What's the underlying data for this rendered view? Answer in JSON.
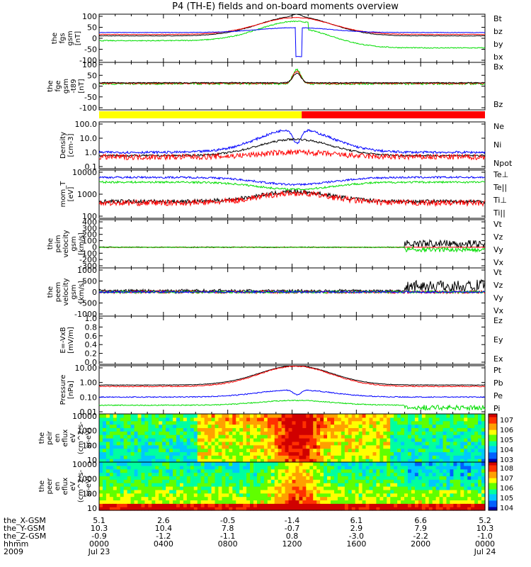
{
  "title": "P4 (TH-E) fields and on-board moments overview",
  "year": "2009",
  "colors": {
    "black": "#000000",
    "red": "#ff0000",
    "green": "#00dd00",
    "blue": "#0000ff",
    "yellow": "#ffff00"
  },
  "chart_data": [
    {
      "type": "line",
      "name": "fgs",
      "ylabel": [
        "the",
        "fgs",
        "gsm",
        "[nT]"
      ],
      "ylim": [
        -100,
        100
      ],
      "yticks": [
        "100",
        "50",
        "0",
        "-50",
        "-100"
      ],
      "legend": [
        {
          "label": "Bt",
          "color": "#000000"
        },
        {
          "label": "bz",
          "color": "#ff0000"
        },
        {
          "label": "by",
          "color": "#00dd00"
        },
        {
          "label": "bx",
          "color": "#0000ff"
        }
      ]
    },
    {
      "type": "line",
      "name": "fge",
      "ylabel": [
        "the",
        "fge",
        "gsm",
        "-t89",
        "[nT]"
      ],
      "ylim": [
        -120,
        100
      ],
      "yticks": [
        "100",
        "50",
        "0",
        "-50",
        "-100"
      ],
      "legend": [
        {
          "label": "Bx",
          "color": "#0000ff"
        },
        {
          "label": "Bz",
          "color": "#ff0000"
        }
      ]
    },
    {
      "type": "bar",
      "name": "mode-bar",
      "segments": [
        {
          "x": [
            0.0,
            12.6
          ],
          "color": "#ffff00"
        },
        {
          "x": [
            12.6,
            24.0
          ],
          "color": "#ff0000"
        }
      ]
    },
    {
      "type": "line",
      "name": "density",
      "scale": "log",
      "ylabel": [
        "Density",
        "[cm-3]"
      ],
      "yticks": [
        "100.0",
        "10.0",
        "1.0",
        "0.1"
      ],
      "legend": [
        {
          "label": "Ne",
          "color": "#ff0000"
        },
        {
          "label": "Ni",
          "color": "#000000"
        },
        {
          "label": "Npot",
          "color": "#0000ff"
        }
      ]
    },
    {
      "type": "line",
      "name": "temperature",
      "scale": "log",
      "ylabel": [
        "mom_T",
        "[eV]"
      ],
      "yticks": [
        "10000",
        "1000",
        "100"
      ],
      "legend": [
        {
          "label": "Te⊥",
          "color": "#ff0000"
        },
        {
          "label": "Te||",
          "color": "#000000"
        },
        {
          "label": "Ti⊥",
          "color": "#ff0000"
        },
        {
          "label": "Ti||",
          "color": "#00dd00"
        }
      ]
    },
    {
      "type": "line",
      "name": "peim-velocity",
      "ylabel": [
        "the",
        "peim",
        "velocity",
        "gsm",
        "[km/s]"
      ],
      "ylim": [
        -300,
        400
      ],
      "yticks": [
        "400",
        "300",
        "200",
        "100",
        "0",
        "-100",
        "-200",
        "-300"
      ],
      "legend": [
        {
          "label": "Vt",
          "color": "#000000"
        },
        {
          "label": "Vz",
          "color": "#ff0000"
        },
        {
          "label": "Vy",
          "color": "#00dd00"
        },
        {
          "label": "Vx",
          "color": "#0000ff"
        }
      ]
    },
    {
      "type": "line",
      "name": "peem-velocity",
      "ylabel": [
        "the",
        "peem",
        "velocity",
        "gsm",
        "[km/s]"
      ],
      "ylim": [
        -1000,
        1000
      ],
      "yticks": [
        "1000",
        "500",
        "0",
        "-500",
        "-1000"
      ],
      "legend": [
        {
          "label": "Vt",
          "color": "#000000"
        },
        {
          "label": "Vz",
          "color": "#ff0000"
        },
        {
          "label": "Vy",
          "color": "#00dd00"
        },
        {
          "label": "Vx",
          "color": "#0000ff"
        }
      ]
    },
    {
      "type": "line",
      "name": "efield",
      "ylabel": [
        "E=-VxB",
        "[mV/m]"
      ],
      "ylim": [
        0,
        1
      ],
      "yticks": [
        "1.0",
        "0.8",
        "0.6",
        "0.4",
        "0.2",
        "0.0"
      ],
      "legend": [
        {
          "label": "Ez",
          "color": "#ff0000"
        },
        {
          "label": "Ey",
          "color": "#00dd00"
        },
        {
          "label": "Ex",
          "color": "#0000ff"
        }
      ]
    },
    {
      "type": "line",
      "name": "pressure",
      "scale": "log",
      "ylabel": [
        "Pressure",
        "[nPa]"
      ],
      "yticks": [
        "10.00",
        "1.00",
        "0.10",
        "0.01"
      ],
      "legend": [
        {
          "label": "Pt",
          "color": "#000000"
        },
        {
          "label": "Pb",
          "color": "#ff0000"
        },
        {
          "label": "Pe",
          "color": "#00dd00"
        },
        {
          "label": "Pi",
          "color": "#0000ff"
        }
      ]
    },
    {
      "type": "heatmap",
      "name": "peir-eflux",
      "ylabel": [
        "the",
        "peir",
        "en",
        "eflux",
        "eV",
        "(cm^2-s-",
        "sr-eV)"
      ],
      "yticks": [
        "10000",
        "1000",
        "100",
        "10"
      ],
      "colorbar": [
        "10^7",
        "10^6",
        "10^5",
        "10^4",
        "10^3"
      ]
    },
    {
      "type": "heatmap",
      "name": "peer-eflux",
      "ylabel": [
        "the",
        "peer",
        "en",
        "eflux",
        "eV",
        "(cm^2-s-",
        "sr-eV)"
      ],
      "yticks": [
        "10000",
        "1000",
        "100",
        "10"
      ],
      "colorbar": [
        "10^8",
        "10^7",
        "10^6",
        "10^5",
        "10^4"
      ]
    }
  ],
  "xaxis": {
    "rows": [
      {
        "label": "the_X-GSM",
        "values": [
          "5.1",
          "2.6",
          "-0.5",
          "-1.4",
          "6.1",
          "6.6",
          "5.2"
        ]
      },
      {
        "label": "the_Y-GSM",
        "values": [
          "10.3",
          "10.4",
          "7.8",
          "-0.7",
          "2.9",
          "7.9",
          "10.3"
        ]
      },
      {
        "label": "the_Z-GSM",
        "values": [
          "-0.9",
          "-1.2",
          "-1.1",
          "0.8",
          "-3.0",
          "-2.2",
          "-1.0"
        ]
      },
      {
        "label": "hhmm",
        "values": [
          "0000",
          "0400",
          "0800",
          "1200",
          "1600",
          "2000",
          "0000"
        ]
      }
    ],
    "dates": [
      "Jul 23",
      "Jul 24"
    ]
  }
}
